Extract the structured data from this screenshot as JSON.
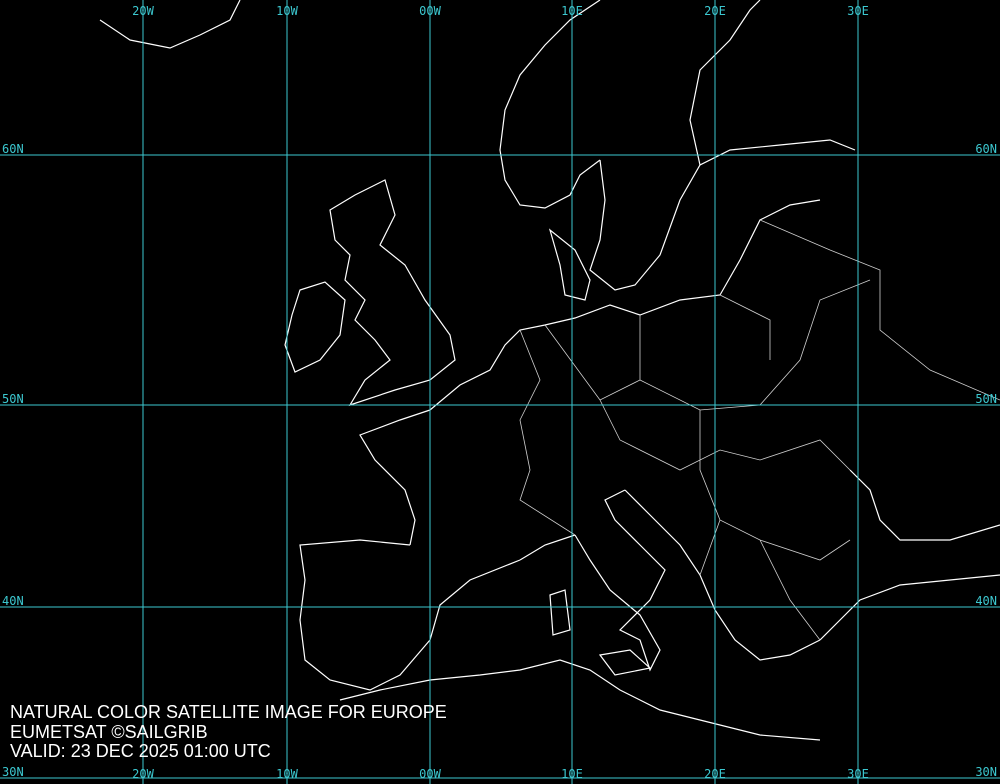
{
  "title": "NATURAL COLOR SATELLITE IMAGE FOR EUROPE",
  "credit": "EUMETSAT ©SAILGRIB",
  "valid": "VALID:  23 DEC 2025 01:00 UTC",
  "longitudes": [
    "20W",
    "10W",
    "00W",
    "10E",
    "20E",
    "30E"
  ],
  "latitudes": [
    "60N",
    "50N",
    "40N",
    "30N"
  ]
}
